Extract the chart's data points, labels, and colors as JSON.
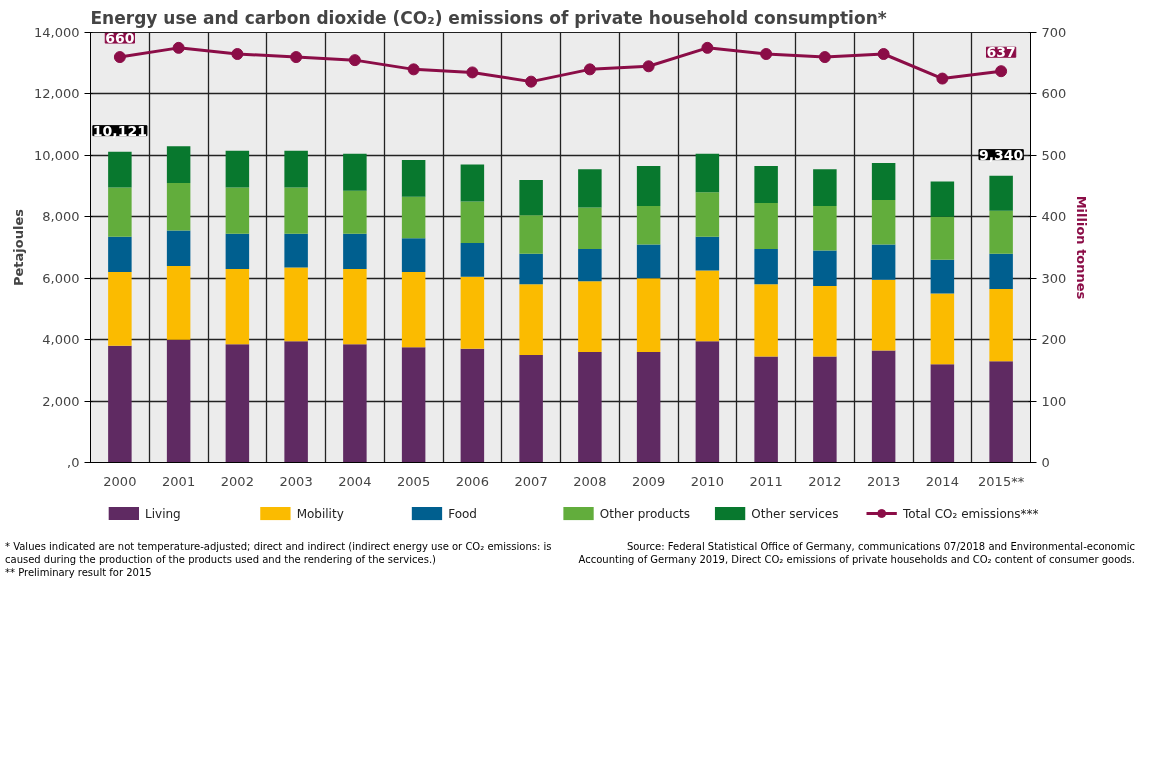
{
  "chart_data": {
    "type": "bar",
    "stacked": true,
    "title": "Energy use and carbon dioxide (CO₂) emissions of private household consumption*",
    "ylabel": "Petajoules",
    "y2label": "Million tonnes",
    "categories": [
      "2000",
      "2001",
      "2002",
      "2003",
      "2004",
      "2005",
      "2006",
      "2007",
      "2008",
      "2009",
      "2010",
      "2011",
      "2012",
      "2013",
      "2014",
      "2015**"
    ],
    "series": [
      {
        "name": "Living",
        "color": "#5f2a62",
        "values": [
          3800,
          4000,
          3850,
          3950,
          3850,
          3750,
          3700,
          3500,
          3600,
          3600,
          3950,
          3450,
          3450,
          3650,
          3200,
          3300
        ]
      },
      {
        "name": "Mobility",
        "color": "#fbbb00",
        "values": [
          2400,
          2400,
          2450,
          2400,
          2450,
          2450,
          2350,
          2300,
          2300,
          2400,
          2300,
          2350,
          2300,
          2300,
          2300,
          2350
        ]
      },
      {
        "name": "Food",
        "color": "#005f8f",
        "values": [
          1150,
          1150,
          1150,
          1100,
          1150,
          1100,
          1100,
          1000,
          1050,
          1100,
          1100,
          1150,
          1150,
          1150,
          1100,
          1150
        ]
      },
      {
        "name": "Other products",
        "color": "#62ad3c",
        "values": [
          1600,
          1550,
          1500,
          1500,
          1400,
          1350,
          1350,
          1250,
          1350,
          1250,
          1450,
          1500,
          1450,
          1450,
          1400,
          1400
        ]
      },
      {
        "name": "Other services",
        "color": "#08782e",
        "values": [
          1171,
          1200,
          1200,
          1200,
          1200,
          1200,
          1200,
          1150,
          1250,
          1300,
          1250,
          1200,
          1200,
          1200,
          1150,
          1140
        ]
      },
      {
        "name": "Total CO₂ emissions***",
        "type": "line",
        "axis": "y2",
        "color": "#8b0d47",
        "marker": "circle",
        "values": [
          660,
          675,
          665,
          660,
          655,
          640,
          635,
          620,
          640,
          645,
          675,
          665,
          660,
          665,
          625,
          637
        ],
        "value_labels": [
          "660",
          null,
          null,
          null,
          null,
          null,
          null,
          null,
          null,
          null,
          null,
          null,
          null,
          null,
          null,
          "637"
        ]
      }
    ],
    "totals": [
      "10,121",
      null,
      null,
      null,
      null,
      null,
      null,
      null,
      null,
      null,
      null,
      null,
      null,
      null,
      null,
      "9,340"
    ],
    "ylim": [
      0,
      14000
    ],
    "yticks": [
      {
        "value": 0,
        "label": ",0"
      },
      {
        "value": 2000,
        "label": "2,000"
      },
      {
        "value": 4000,
        "label": "4,000"
      },
      {
        "value": 6000,
        "label": "6,000"
      },
      {
        "value": 8000,
        "label": "8,000"
      },
      {
        "value": 10000,
        "label": "10,000"
      },
      {
        "value": 12000,
        "label": "12,000"
      },
      {
        "value": 14000,
        "label": "14,000"
      }
    ],
    "y2lim": [
      0,
      700
    ],
    "y2ticks": [
      0,
      100,
      200,
      300,
      400,
      500,
      600,
      700
    ],
    "grid": true,
    "legend": "bottom",
    "annotations": [
      "* Values indicated are not temperature-adjusted; direct and indirect (indirect energy use or CO₂ emissions: is caused during the production of the products used and the rendering of the services.)",
      "** Preliminary result for 2015",
      "Source: Federal Statistical Office of Germany, communications 07/2018 and Environmental-economic Accounting of Germany 2019, Direct CO₂ emissions of private households and CO₂ content of consumer goods."
    ]
  }
}
